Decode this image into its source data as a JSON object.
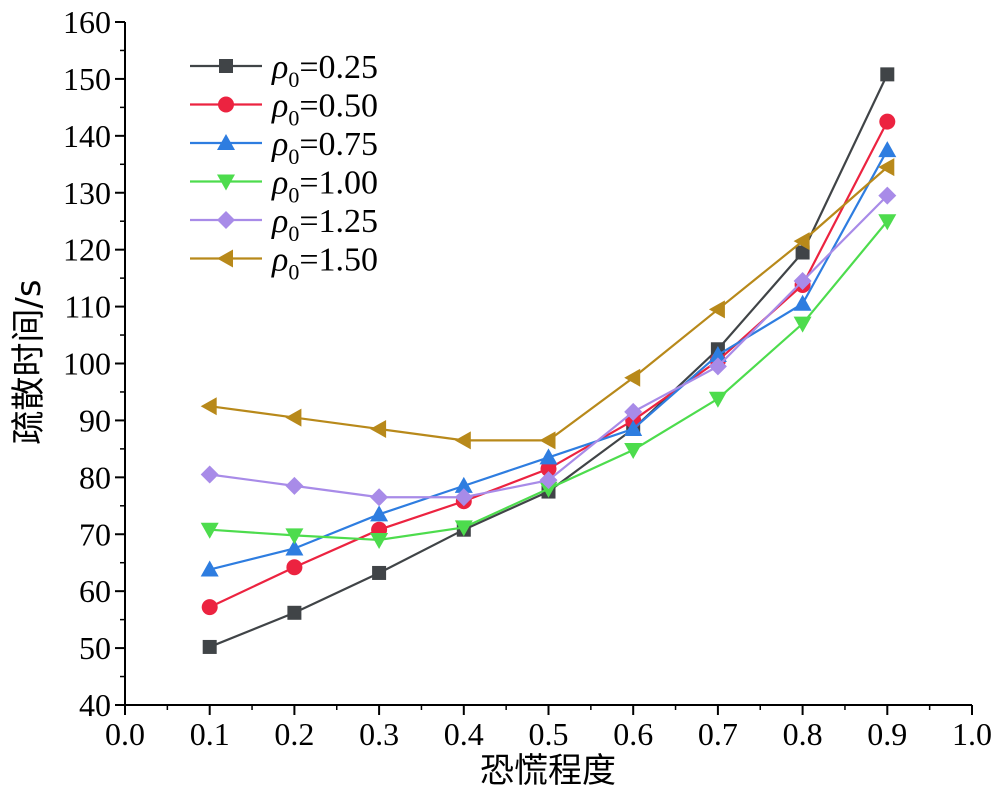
{
  "chart_data": {
    "type": "line",
    "xlabel": "恐慌程度",
    "ylabel": "疏散时间/s",
    "xlim": [
      0.0,
      1.0
    ],
    "ylim": [
      40,
      160
    ],
    "x_ticks": [
      "0.0",
      "0.1",
      "0.2",
      "0.3",
      "0.4",
      "0.5",
      "0.6",
      "0.7",
      "0.8",
      "0.9",
      "1.0"
    ],
    "y_ticks": [
      "40",
      "50",
      "60",
      "70",
      "80",
      "90",
      "100",
      "110",
      "120",
      "130",
      "140",
      "150",
      "160"
    ],
    "grid": false,
    "legend_position": "top-left",
    "x": [
      0.1,
      0.2,
      0.3,
      0.4,
      0.5,
      0.6,
      0.7,
      0.8,
      0.9
    ],
    "series": [
      {
        "name": "ρ0=0.25",
        "legend_symbol": "ρ",
        "legend_sub": "0",
        "legend_value": "=0.25",
        "marker": "square",
        "color": "#404447",
        "values": [
          50.2,
          56.2,
          63.2,
          70.8,
          77.5,
          88.5,
          102.5,
          119.5,
          150.8
        ]
      },
      {
        "name": "ρ0=0.50",
        "legend_symbol": "ρ",
        "legend_sub": "0",
        "legend_value": "=0.50",
        "marker": "circle",
        "color": "#ec2340",
        "values": [
          57.2,
          64.2,
          70.8,
          75.8,
          81.5,
          90.0,
          100.5,
          113.8,
          142.5
        ]
      },
      {
        "name": "ρ0=0.75",
        "legend_symbol": "ρ",
        "legend_sub": "0",
        "legend_value": "=0.75",
        "marker": "triangle-up",
        "color": "#2e7de0",
        "values": [
          63.8,
          67.5,
          73.5,
          78.5,
          83.5,
          88.5,
          101.5,
          110.5,
          137.5
        ]
      },
      {
        "name": "ρ0=1.00",
        "legend_symbol": "ρ",
        "legend_sub": "0",
        "legend_value": "=1.00",
        "marker": "triangle-down",
        "color": "#4ddc4d",
        "values": [
          70.8,
          69.8,
          69.0,
          71.2,
          78.0,
          84.8,
          93.8,
          107.0,
          125.0
        ]
      },
      {
        "name": "ρ0=1.25",
        "legend_symbol": "ρ",
        "legend_sub": "0",
        "legend_value": "=1.25",
        "marker": "diamond",
        "color": "#a88be8",
        "values": [
          80.5,
          78.5,
          76.5,
          76.5,
          79.5,
          91.5,
          99.5,
          114.5,
          129.5
        ]
      },
      {
        "name": "ρ0=1.50",
        "legend_symbol": "ρ",
        "legend_sub": "0",
        "legend_value": "=1.50",
        "marker": "triangle-left",
        "color": "#b8891a",
        "values": [
          92.5,
          90.5,
          88.5,
          86.5,
          86.5,
          97.5,
          109.5,
          121.5,
          134.5
        ]
      }
    ]
  }
}
